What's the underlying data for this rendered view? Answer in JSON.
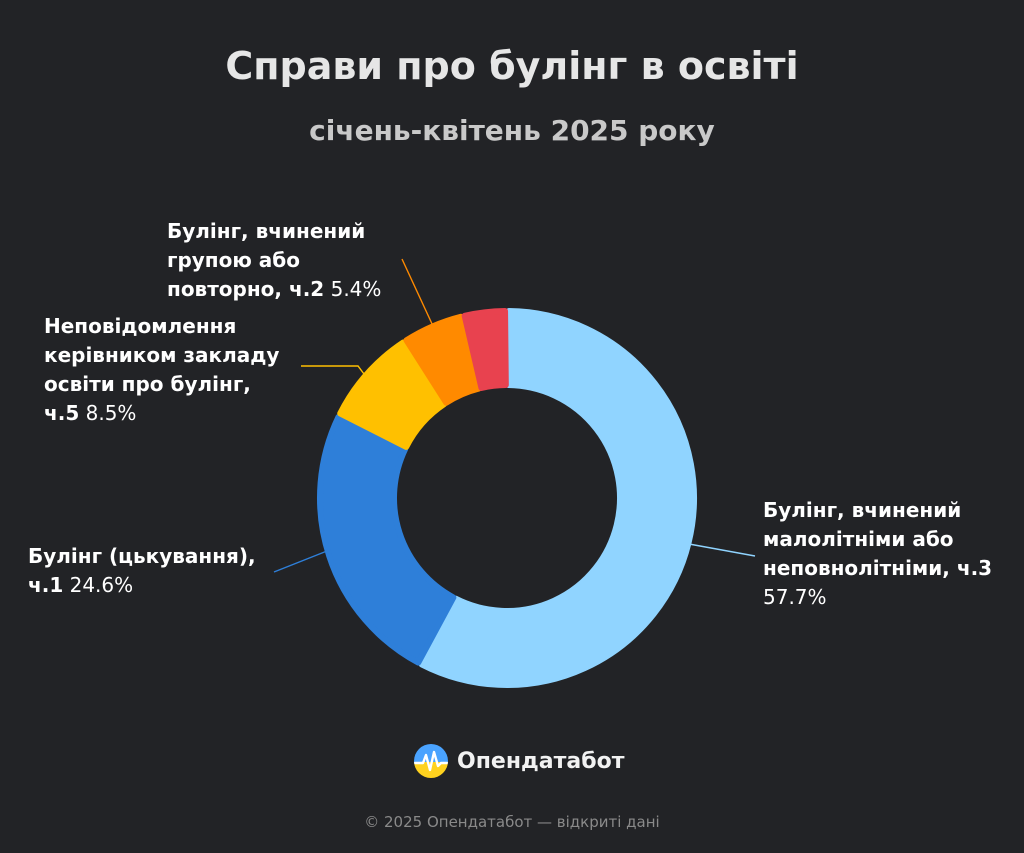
{
  "header": {
    "title": "Справи про булінг в освіті",
    "subtitle": "січень-квітень 2025 року"
  },
  "chart_data": {
    "type": "pie",
    "donut": true,
    "title": "Справи про булінг в освіті",
    "subtitle": "січень-квітень 2025 року",
    "unit": "%",
    "slices": [
      {
        "label": "Булінг, вчинений малолітніми або неповнолітніми, ч.3",
        "lines": [
          "Булінг, вчинений",
          "малолітніми або",
          "неповнолітніми, ч.3"
        ],
        "value": 57.7,
        "display": "57.7%",
        "color": "#90d4ff"
      },
      {
        "label": "Булінг (цькування), ч.1",
        "lines": [
          "Булінг (цькування),",
          "ч.1"
        ],
        "value": 24.6,
        "display": "24.6%",
        "color": "#2e7fd9"
      },
      {
        "label": "Неповідомлення керівником закладу освіти про булінг, ч.5",
        "lines": [
          "Неповідомлення",
          "керівником закладу",
          "освіти про булінг,",
          "ч.5"
        ],
        "value": 8.5,
        "display": "8.5%",
        "color": "#ffc000"
      },
      {
        "label": "Булінг, вчинений групою або повторно, ч.2",
        "lines": [
          "Булінг, вчинений",
          "групою або",
          "повторно, ч.2"
        ],
        "value": 5.4,
        "display": "5.4%",
        "color": "#ff8a00"
      },
      {
        "label": "",
        "lines": [],
        "value": 3.8,
        "display": "",
        "color": "#e8424f"
      }
    ]
  },
  "brand": {
    "name": "Опендатабот",
    "logo_icon": "opendatabot-logo-icon"
  },
  "footer": {
    "text": "© 2025 Опендатабот — відкриті дані"
  }
}
